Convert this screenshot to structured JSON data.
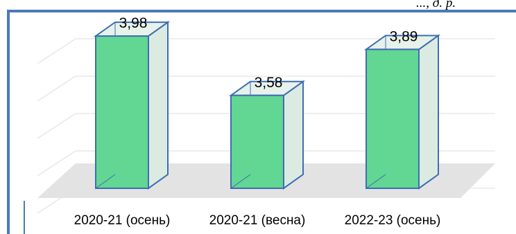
{
  "corner_text": "..., д. р.",
  "chart_data": {
    "type": "bar",
    "categories": [
      "2020-21 (осень)",
      "2020-21 (весна)",
      "2022-23 (осень)"
    ],
    "values": [
      3.98,
      3.58,
      3.89
    ],
    "value_labels": [
      "3,98",
      "3,58",
      "3,89"
    ],
    "title": "",
    "xlabel": "",
    "ylabel": "",
    "ylim": [
      3.0,
      4.1
    ],
    "grid": true,
    "style": "3d-column",
    "colors": {
      "bar_front": "#62d693",
      "bar_side": "#dcebe2",
      "bar_top": "#e6f2ea",
      "bar_edge": "#3f6db3",
      "floor": "#e3e3e3",
      "grid": "#e8e8e8"
    }
  }
}
